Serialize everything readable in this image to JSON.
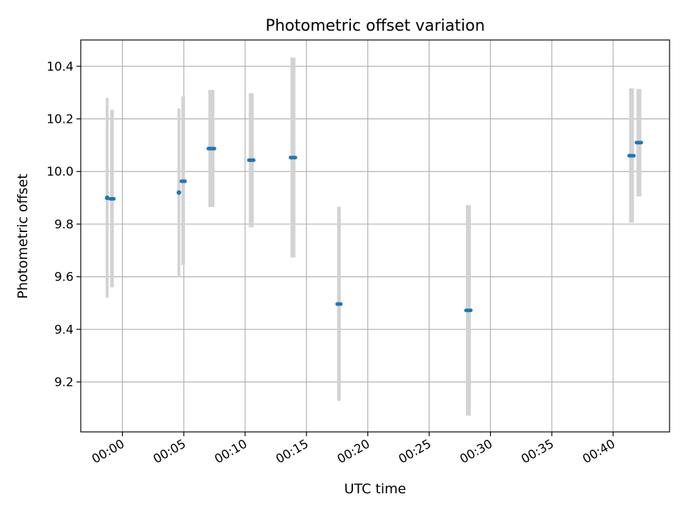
{
  "chart_data": {
    "type": "scatter",
    "title": "Photometric offset variation",
    "xlabel": "UTC time",
    "ylabel": "Photometric offset",
    "x_unit": "minutes",
    "xlim": [
      -3.4,
      44.6
    ],
    "ylim": [
      9.01,
      10.5
    ],
    "grid": true,
    "x_ticks": [
      {
        "value": 0,
        "label": "00:00"
      },
      {
        "value": 5,
        "label": "00:05"
      },
      {
        "value": 10,
        "label": "00:10"
      },
      {
        "value": 15,
        "label": "00:15"
      },
      {
        "value": 20,
        "label": "00:20"
      },
      {
        "value": 25,
        "label": "00:25"
      },
      {
        "value": 30,
        "label": "00:30"
      },
      {
        "value": 35,
        "label": "00:35"
      },
      {
        "value": 40,
        "label": "00:40"
      }
    ],
    "y_ticks": [
      {
        "value": 9.2,
        "label": "9.2"
      },
      {
        "value": 9.4,
        "label": "9.4"
      },
      {
        "value": 9.6,
        "label": "9.6"
      },
      {
        "value": 9.8,
        "label": "9.8"
      },
      {
        "value": 10.0,
        "label": "10.0"
      },
      {
        "value": 10.2,
        "label": "10.2"
      },
      {
        "value": 10.4,
        "label": "10.4"
      }
    ],
    "marker_color": "#1f77b4",
    "errorbar_color": "#d3d3d3",
    "points": [
      {
        "x_start": -1.3,
        "x_end": -1.2,
        "y": 9.9,
        "ylow": 9.52,
        "yhigh": 10.28
      },
      {
        "x_start": -1.0,
        "x_end": -0.7,
        "y": 9.896,
        "ylow": 9.56,
        "yhigh": 10.235
      },
      {
        "x_start": 4.6,
        "x_end": 4.6,
        "y": 9.92,
        "ylow": 9.6,
        "yhigh": 10.24
      },
      {
        "x_start": 4.8,
        "x_end": 5.1,
        "y": 9.963,
        "ylow": 9.645,
        "yhigh": 10.285
      },
      {
        "x_start": 7.0,
        "x_end": 7.5,
        "y": 10.087,
        "ylow": 9.865,
        "yhigh": 10.31
      },
      {
        "x_start": 10.3,
        "x_end": 10.7,
        "y": 10.043,
        "ylow": 9.788,
        "yhigh": 10.298
      },
      {
        "x_start": 13.7,
        "x_end": 14.1,
        "y": 10.053,
        "ylow": 9.673,
        "yhigh": 10.433
      },
      {
        "x_start": 17.5,
        "x_end": 17.8,
        "y": 9.496,
        "ylow": 9.128,
        "yhigh": 9.866
      },
      {
        "x_start": 28.0,
        "x_end": 28.4,
        "y": 9.472,
        "ylow": 9.072,
        "yhigh": 9.872
      },
      {
        "x_start": 41.3,
        "x_end": 41.7,
        "y": 10.06,
        "ylow": 9.805,
        "yhigh": 10.316
      },
      {
        "x_start": 41.9,
        "x_end": 42.3,
        "y": 10.11,
        "ylow": 9.905,
        "yhigh": 10.314
      }
    ]
  }
}
